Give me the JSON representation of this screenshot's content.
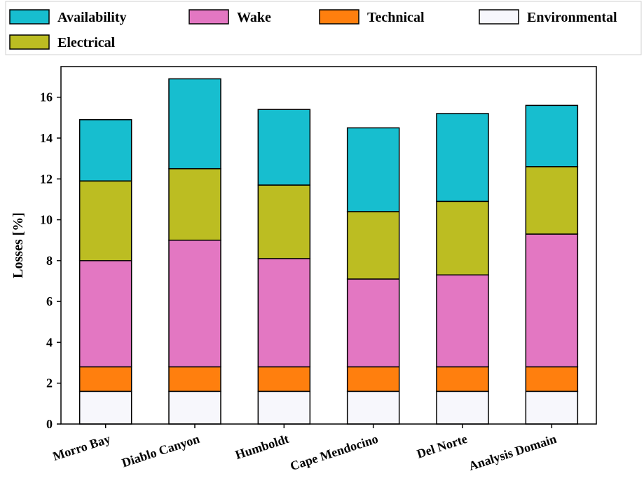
{
  "chart_data": {
    "type": "bar",
    "stacked": true,
    "categories": [
      "Morro Bay",
      "Diablo Canyon",
      "Humboldt",
      "Cape Mendocino",
      "Del Norte",
      "Analysis Domain"
    ],
    "series": [
      {
        "name": "Environmental",
        "color": "#f7f7fc",
        "values": [
          1.6,
          1.6,
          1.6,
          1.6,
          1.6,
          1.6
        ]
      },
      {
        "name": "Technical",
        "color": "#ff7f0e",
        "values": [
          1.2,
          1.2,
          1.2,
          1.2,
          1.2,
          1.2
        ]
      },
      {
        "name": "Wake",
        "color": "#e377c2",
        "values": [
          5.2,
          6.2,
          5.3,
          4.3,
          4.5,
          6.5
        ]
      },
      {
        "name": "Electrical",
        "color": "#bcbd22",
        "values": [
          3.9,
          3.5,
          3.6,
          3.3,
          3.6,
          3.3
        ]
      },
      {
        "name": "Availability",
        "color": "#17becf",
        "values": [
          3.0,
          4.4,
          3.7,
          4.1,
          4.3,
          3.0
        ]
      }
    ],
    "legend_order": [
      "Availability",
      "Wake",
      "Technical",
      "Environmental",
      "Electrical"
    ],
    "legend_placement": "top, above plot",
    "xlabel": "",
    "ylabel": "Losses [%]",
    "ylim": [
      0,
      17.5
    ],
    "yticks": [
      0,
      2,
      4,
      6,
      8,
      10,
      12,
      14,
      16
    ],
    "grid": false
  }
}
